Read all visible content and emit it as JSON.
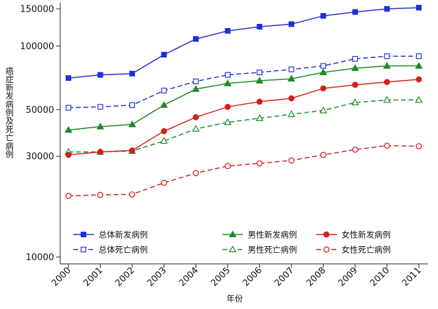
{
  "chart_data": {
    "type": "line",
    "xlabel": "年份",
    "ylabel": "癌症新发病例及死亡病例",
    "yscale": "log",
    "ylim": [
      10000,
      160000
    ],
    "yticks": [
      10000,
      30000,
      50000,
      100000,
      150000
    ],
    "ytick_labels": [
      "10000",
      "30000",
      "50000",
      "100000",
      "150000"
    ],
    "x": [
      "2000",
      "2001",
      "2002",
      "2003",
      "2004",
      "2005",
      "2006",
      "2007",
      "2008",
      "2009",
      "2010",
      "2011"
    ],
    "grid": false,
    "legend_position": "bottom",
    "series": [
      {
        "name": "总体新发病例",
        "color": "#1f2fd6",
        "dash": "solid",
        "marker": "square-filled",
        "values": [
          70500,
          73000,
          74000,
          91000,
          108000,
          118000,
          123500,
          127000,
          139000,
          145000,
          150000,
          152000
        ]
      },
      {
        "name": "总体死亡病例",
        "color": "#1f2fd6",
        "dash": "dashed",
        "marker": "square-open",
        "values": [
          51000,
          51500,
          52500,
          61500,
          68000,
          73000,
          75000,
          77500,
          80500,
          87000,
          89500,
          89500
        ]
      },
      {
        "name": "男性新发病例",
        "color": "#1e8a2a",
        "dash": "solid",
        "marker": "triangle-filled",
        "values": [
          40000,
          41500,
          42500,
          52500,
          62500,
          66500,
          68500,
          70000,
          75000,
          78500,
          80500,
          80500
        ]
      },
      {
        "name": "男性死亡病例",
        "color": "#1e8a2a",
        "dash": "dashed",
        "marker": "triangle-open",
        "values": [
          31500,
          31500,
          31800,
          35500,
          40500,
          43500,
          45500,
          47500,
          49500,
          54000,
          55500,
          55500
        ]
      },
      {
        "name": "女性新发病例",
        "color": "#d61f1f",
        "dash": "solid",
        "marker": "circle-filled",
        "values": [
          30500,
          31500,
          32000,
          39500,
          46000,
          51500,
          54500,
          56500,
          63000,
          65500,
          67500,
          69500
        ]
      },
      {
        "name": "女性死亡病例",
        "color": "#d61f1f",
        "dash": "dashed",
        "marker": "circle-open",
        "values": [
          19500,
          19700,
          19800,
          22500,
          25000,
          27000,
          27800,
          28700,
          30500,
          32300,
          33700,
          33500
        ]
      }
    ]
  }
}
